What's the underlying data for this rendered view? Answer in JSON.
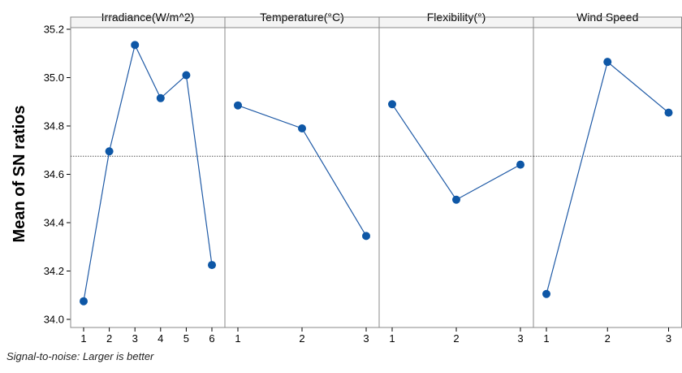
{
  "chart_data": {
    "type": "line",
    "ylabel": "Mean of SN ratios",
    "ylim": [
      34.0,
      35.2
    ],
    "yticks": [
      "34.0",
      "34.2",
      "34.4",
      "34.6",
      "34.8",
      "35.0",
      "35.2"
    ],
    "reference_line": 34.675,
    "footnote": "Signal-to-noise: Larger is better",
    "colors": {
      "series": "#1f5aa6",
      "point": "#0e57a6",
      "reference": "#555555",
      "panel_border": "#888888",
      "header_bg": "#f4f4f4"
    },
    "panels": [
      {
        "title": "Irradiance(W/m^2)",
        "categories": [
          "1",
          "2",
          "3",
          "4",
          "5",
          "6"
        ],
        "values": [
          34.075,
          34.695,
          35.135,
          34.915,
          35.01,
          34.225
        ]
      },
      {
        "title": "Temperature(°C)",
        "categories": [
          "1",
          "2",
          "3"
        ],
        "values": [
          34.885,
          34.79,
          34.345
        ]
      },
      {
        "title": "Flexibility(°)",
        "categories": [
          "1",
          "2",
          "3"
        ],
        "values": [
          34.89,
          34.495,
          34.64
        ]
      },
      {
        "title": "Wind Speed",
        "categories": [
          "1",
          "2",
          "3"
        ],
        "values": [
          34.105,
          35.065,
          34.855
        ]
      }
    ]
  }
}
